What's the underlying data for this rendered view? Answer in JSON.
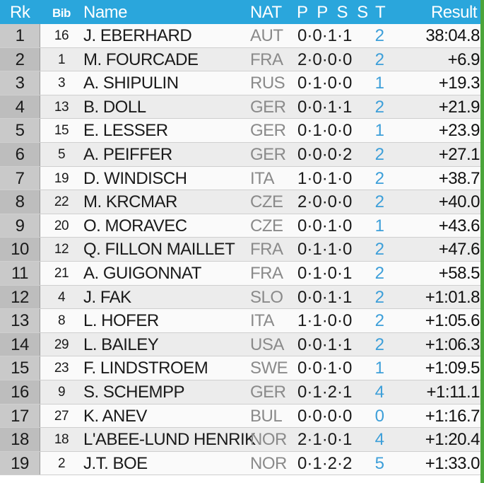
{
  "header": {
    "rank": "Rk",
    "bib": "Bib",
    "name": "Name",
    "nat": "NAT",
    "shooting": "P P S S",
    "total": "T",
    "result": "Result"
  },
  "rows": [
    {
      "rank": "1",
      "bib": "16",
      "name": "J. EBERHARD",
      "nat": "AUT",
      "shooting": "0·0·1·1",
      "total": "2",
      "result": "38:04.8"
    },
    {
      "rank": "2",
      "bib": "1",
      "name": "M. FOURCADE",
      "nat": "FRA",
      "shooting": "2·0·0·0",
      "total": "2",
      "result": "+6.9"
    },
    {
      "rank": "3",
      "bib": "3",
      "name": "A. SHIPULIN",
      "nat": "RUS",
      "shooting": "0·1·0·0",
      "total": "1",
      "result": "+19.3"
    },
    {
      "rank": "4",
      "bib": "13",
      "name": "B. DOLL",
      "nat": "GER",
      "shooting": "0·0·1·1",
      "total": "2",
      "result": "+21.9"
    },
    {
      "rank": "5",
      "bib": "15",
      "name": "E. LESSER",
      "nat": "GER",
      "shooting": "0·1·0·0",
      "total": "1",
      "result": "+23.9"
    },
    {
      "rank": "6",
      "bib": "5",
      "name": "A. PEIFFER",
      "nat": "GER",
      "shooting": "0·0·0·2",
      "total": "2",
      "result": "+27.1"
    },
    {
      "rank": "7",
      "bib": "19",
      "name": "D. WINDISCH",
      "nat": "ITA",
      "shooting": "1·0·1·0",
      "total": "2",
      "result": "+38.7"
    },
    {
      "rank": "8",
      "bib": "22",
      "name": "M. KRCMAR",
      "nat": "CZE",
      "shooting": "2·0·0·0",
      "total": "2",
      "result": "+40.0"
    },
    {
      "rank": "9",
      "bib": "20",
      "name": "O. MORAVEC",
      "nat": "CZE",
      "shooting": "0·0·1·0",
      "total": "1",
      "result": "+43.6"
    },
    {
      "rank": "10",
      "bib": "12",
      "name": "Q. FILLON MAILLET",
      "nat": "FRA",
      "shooting": "0·1·1·0",
      "total": "2",
      "result": "+47.6"
    },
    {
      "rank": "11",
      "bib": "21",
      "name": "A. GUIGONNAT",
      "nat": "FRA",
      "shooting": "0·1·0·1",
      "total": "2",
      "result": "+58.5"
    },
    {
      "rank": "12",
      "bib": "4",
      "name": "J. FAK",
      "nat": "SLO",
      "shooting": "0·0·1·1",
      "total": "2",
      "result": "+1:01.8"
    },
    {
      "rank": "13",
      "bib": "8",
      "name": "L. HOFER",
      "nat": "ITA",
      "shooting": "1·1·0·0",
      "total": "2",
      "result": "+1:05.6"
    },
    {
      "rank": "14",
      "bib": "29",
      "name": "L. BAILEY",
      "nat": "USA",
      "shooting": "0·0·1·1",
      "total": "2",
      "result": "+1:06.3"
    },
    {
      "rank": "15",
      "bib": "23",
      "name": "F. LINDSTROEM",
      "nat": "SWE",
      "shooting": "0·0·1·0",
      "total": "1",
      "result": "+1:09.5"
    },
    {
      "rank": "16",
      "bib": "9",
      "name": "S. SCHEMPP",
      "nat": "GER",
      "shooting": "0·1·2·1",
      "total": "4",
      "result": "+1:11.1"
    },
    {
      "rank": "17",
      "bib": "27",
      "name": "K. ANEV",
      "nat": "BUL",
      "shooting": "0·0·0·0",
      "total": "0",
      "result": "+1:16.7"
    },
    {
      "rank": "18",
      "bib": "18",
      "name": "L'ABEE-LUND HENRIK",
      "nat": "NOR",
      "shooting": "2·1·0·1",
      "total": "4",
      "result": "+1:20.4"
    },
    {
      "rank": "19",
      "bib": "2",
      "name": "J.T. BOE",
      "nat": "NOR",
      "shooting": "0·1·2·2",
      "total": "5",
      "result": "+1:33.0"
    }
  ],
  "colors": {
    "header_bg": "#2aa6dc",
    "total_text": "#3d9fd9",
    "nat_text": "#8a8a8a",
    "accent_bar": "#4ba53a"
  }
}
